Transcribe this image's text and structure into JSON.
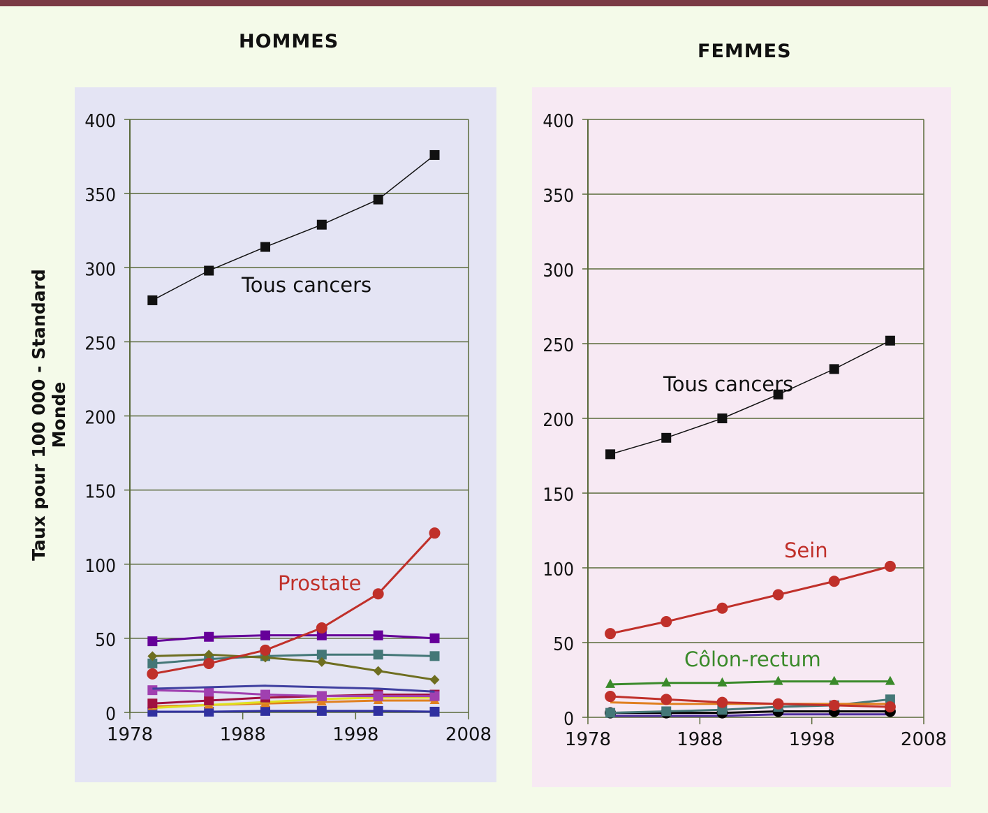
{
  "ylabel": "Taux pour 100 000 - Standard  Monde",
  "chart_data": [
    {
      "type": "line",
      "title": "HOMMES",
      "panel_color": "#e4e4f4",
      "x": [
        1980,
        1985,
        1990,
        1995,
        2000,
        2005
      ],
      "xticks": [
        "1978",
        "1988",
        "1998",
        "2008"
      ],
      "xlim": [
        1978,
        2008
      ],
      "ylim": [
        0,
        400
      ],
      "yticks": [
        "0",
        "50",
        "100",
        "150",
        "200",
        "250",
        "300",
        "350",
        "400"
      ],
      "series": [
        {
          "name": "Tous cancers",
          "label": "Tous cancers",
          "color": "#111111",
          "marker": "square",
          "values": [
            278,
            298,
            314,
            329,
            346,
            376
          ]
        },
        {
          "name": "Prostate",
          "label": "Prostate",
          "color": "#c0302a",
          "marker": "circle",
          "values": [
            26,
            33,
            42,
            57,
            80,
            121
          ]
        },
        {
          "name": "series-purple",
          "color": "#660099",
          "marker": "square",
          "values": [
            48,
            51,
            52,
            52,
            52,
            50
          ]
        },
        {
          "name": "series-olive",
          "color": "#6e6e20",
          "marker": "diamond",
          "values": [
            38,
            39,
            37,
            34,
            28,
            22
          ]
        },
        {
          "name": "series-teal",
          "color": "#447777",
          "marker": "square",
          "values": [
            33,
            36,
            38,
            39,
            39,
            38
          ]
        },
        {
          "name": "series-blue",
          "color": "#4040a0",
          "marker": "none",
          "values": [
            16,
            17,
            18,
            17,
            16,
            14
          ]
        },
        {
          "name": "series-magenta",
          "color": "#a040b0",
          "marker": "square",
          "values": [
            15,
            14,
            12,
            11,
            11,
            11
          ]
        },
        {
          "name": "series-crimson",
          "color": "#a01040",
          "marker": "square",
          "values": [
            6,
            8,
            10,
            11,
            12,
            12
          ]
        },
        {
          "name": "series-yellow",
          "color": "#e0e020",
          "marker": "none",
          "values": [
            3,
            5,
            7,
            9,
            10,
            10
          ]
        },
        {
          "name": "series-orange",
          "color": "#e08020",
          "marker": "triangle",
          "values": [
            4,
            5,
            6,
            7,
            8,
            8
          ]
        },
        {
          "name": "series-navy",
          "color": "#3030a0",
          "marker": "square",
          "values": [
            0.5,
            0.5,
            1,
            1,
            1,
            0.5
          ]
        }
      ]
    },
    {
      "type": "line",
      "title": "FEMMES",
      "panel_color": "#f7e9f3",
      "x": [
        1980,
        1985,
        1990,
        1995,
        2000,
        2005
      ],
      "xticks": [
        "1978",
        "1988",
        "1998",
        "2008"
      ],
      "xlim": [
        1978,
        2008
      ],
      "ylim": [
        0,
        400
      ],
      "yticks": [
        "0",
        "50",
        "100",
        "150",
        "200",
        "250",
        "300",
        "350",
        "400"
      ],
      "series": [
        {
          "name": "Tous cancers",
          "label": "Tous cancers",
          "color": "#111111",
          "marker": "square",
          "values": [
            176,
            187,
            200,
            216,
            233,
            252
          ]
        },
        {
          "name": "Sein",
          "label": "Sein",
          "color": "#c0302a",
          "marker": "circle",
          "values": [
            56,
            64,
            73,
            82,
            91,
            101
          ]
        },
        {
          "name": "Côlon-rectum",
          "label": "Côlon-rectum",
          "color": "#3a8a2a",
          "marker": "triangle",
          "values": [
            22,
            23,
            23,
            24,
            24,
            24
          ]
        },
        {
          "name": "series-red",
          "color": "#c0302a",
          "marker": "circle",
          "values": [
            14,
            12,
            10,
            9,
            8,
            7
          ]
        },
        {
          "name": "series-orange",
          "color": "#e08020",
          "marker": "none",
          "values": [
            10,
            9,
            9,
            9,
            9,
            9
          ]
        },
        {
          "name": "series-teal",
          "color": "#447777",
          "marker": "square",
          "values": [
            3,
            4,
            5,
            7,
            8,
            12
          ]
        },
        {
          "name": "series-black",
          "color": "#000000",
          "marker": "circle",
          "values": [
            3,
            3,
            3,
            4,
            4,
            4
          ]
        },
        {
          "name": "series-purple",
          "color": "#5030a0",
          "marker": "none",
          "values": [
            1,
            1,
            1,
            2,
            2,
            2
          ]
        }
      ]
    }
  ]
}
